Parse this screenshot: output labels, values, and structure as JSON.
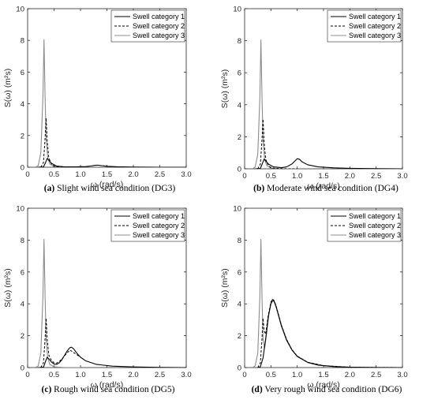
{
  "chart_data": [
    {
      "type": "line",
      "caption_letter": "(a)",
      "caption_text": "Slight wind sea condition (DG3)",
      "xlabel": "ω (rad/s)",
      "ylabel": "S(ω) (m²s)",
      "xlim": [
        0,
        3
      ],
      "ylim": [
        0,
        10
      ],
      "xticks": [
        "0",
        "0.5",
        "1.0",
        "1.5",
        "2.0",
        "2.5",
        "3.0"
      ],
      "yticks": [
        "0",
        "2",
        "4",
        "6",
        "8",
        "10"
      ],
      "legend_position": "top-right",
      "series": [
        {
          "name": "Swell category 1",
          "style": "solid-black",
          "x": [
            0.2,
            0.3,
            0.34,
            0.37,
            0.4,
            0.45,
            0.55,
            0.7,
            0.9,
            1.1,
            1.2,
            1.28,
            1.33,
            1.4,
            1.5,
            1.7,
            2.0,
            2.5,
            3.0
          ],
          "y": [
            0,
            0.02,
            0.3,
            0.55,
            0.45,
            0.25,
            0.07,
            0.02,
            0.02,
            0.04,
            0.08,
            0.12,
            0.13,
            0.1,
            0.06,
            0.03,
            0.01,
            0.0,
            0.0
          ]
        },
        {
          "name": "Swell category 2",
          "style": "dashed-black",
          "x": [
            0.25,
            0.3,
            0.33,
            0.35,
            0.37,
            0.4,
            0.45,
            0.5,
            0.6,
            0.8,
            1.0
          ],
          "y": [
            0,
            0.3,
            1.8,
            3.1,
            1.7,
            0.6,
            0.2,
            0.06,
            0.02,
            0.0,
            0.0
          ]
        },
        {
          "name": "Swell category 3",
          "style": "solid-gray",
          "x": [
            0.15,
            0.2,
            0.25,
            0.29,
            0.31,
            0.33,
            0.35,
            0.38,
            0.42,
            0.5,
            0.7,
            1.0
          ],
          "y": [
            0,
            0.1,
            0.9,
            4.5,
            8.05,
            4.5,
            1.8,
            0.6,
            0.2,
            0.05,
            0.0,
            0.0
          ]
        }
      ]
    },
    {
      "type": "line",
      "caption_letter": "(b)",
      "caption_text": "Moderate wind sea condition (DG4)",
      "xlabel": "ω (rad/s)",
      "ylabel": "S(ω) (m²s)",
      "xlim": [
        0,
        3
      ],
      "ylim": [
        0,
        10
      ],
      "xticks": [
        "0",
        "0.5",
        "1.0",
        "1.5",
        "2.0",
        "2.5",
        "3.0"
      ],
      "yticks": [
        "0",
        "2",
        "4",
        "6",
        "8",
        "10"
      ],
      "legend_position": "top-right",
      "series": [
        {
          "name": "Swell category 1",
          "style": "solid-black",
          "x": [
            0.2,
            0.3,
            0.34,
            0.37,
            0.4,
            0.45,
            0.55,
            0.7,
            0.8,
            0.9,
            0.96,
            1.0,
            1.04,
            1.1,
            1.2,
            1.4,
            1.7,
            2.0,
            2.5,
            3.0
          ],
          "y": [
            0,
            0.02,
            0.35,
            0.6,
            0.5,
            0.3,
            0.12,
            0.07,
            0.12,
            0.3,
            0.5,
            0.63,
            0.6,
            0.42,
            0.25,
            0.12,
            0.06,
            0.03,
            0.01,
            0.0
          ]
        },
        {
          "name": "Swell category 2",
          "style": "dashed-black",
          "x": [
            0.25,
            0.3,
            0.33,
            0.35,
            0.37,
            0.4,
            0.45,
            0.5,
            0.6,
            0.8,
            1.0
          ],
          "y": [
            0,
            0.3,
            1.8,
            3.1,
            1.7,
            0.6,
            0.2,
            0.06,
            0.02,
            0.0,
            0.0
          ]
        },
        {
          "name": "Swell category 3",
          "style": "solid-gray",
          "x": [
            0.15,
            0.2,
            0.25,
            0.29,
            0.31,
            0.33,
            0.35,
            0.38,
            0.42,
            0.5,
            0.7,
            1.0
          ],
          "y": [
            0,
            0.1,
            0.9,
            4.5,
            8.05,
            4.5,
            1.8,
            0.6,
            0.2,
            0.05,
            0.0,
            0.0
          ]
        }
      ]
    },
    {
      "type": "line",
      "caption_letter": "(c)",
      "caption_text": "Rough wind sea condition (DG5)",
      "xlabel": "ω (rad/s)",
      "ylabel": "S(ω) (m²s)",
      "xlim": [
        0,
        3
      ],
      "ylim": [
        0,
        10
      ],
      "xticks": [
        "0",
        "0.5",
        "1.0",
        "1.5",
        "2.0",
        "2.5",
        "3.0"
      ],
      "yticks": [
        "0",
        "2",
        "4",
        "6",
        "8",
        "10"
      ],
      "legend_position": "top-right",
      "series": [
        {
          "name": "Swell category 1",
          "style": "solid-black",
          "x": [
            0.2,
            0.3,
            0.34,
            0.37,
            0.4,
            0.45,
            0.5,
            0.55,
            0.6,
            0.65,
            0.7,
            0.75,
            0.8,
            0.83,
            0.87,
            0.92,
            1.0,
            1.1,
            1.3,
            1.6,
            2.0,
            2.5,
            3.0
          ],
          "y": [
            0,
            0.02,
            0.4,
            0.65,
            0.55,
            0.35,
            0.22,
            0.2,
            0.3,
            0.5,
            0.78,
            1.05,
            1.25,
            1.28,
            1.18,
            0.95,
            0.65,
            0.42,
            0.2,
            0.09,
            0.04,
            0.01,
            0.0
          ]
        },
        {
          "name": "Swell category 2",
          "style": "dashed-black",
          "x": [
            0.25,
            0.3,
            0.33,
            0.35,
            0.37,
            0.4,
            0.45,
            0.5,
            0.55,
            0.6,
            0.65,
            0.7,
            0.8,
            1.0
          ],
          "y": [
            0,
            0.3,
            1.8,
            3.1,
            1.8,
            0.8,
            0.45,
            0.3,
            0.28,
            0.38,
            0.55,
            0.75,
            1.1,
            0.65
          ]
        },
        {
          "name": "Swell category 3",
          "style": "solid-gray",
          "x": [
            0.15,
            0.2,
            0.25,
            0.29,
            0.31,
            0.33,
            0.35,
            0.38,
            0.42,
            0.5,
            0.7,
            1.0
          ],
          "y": [
            0,
            0.1,
            0.9,
            4.5,
            8.05,
            4.5,
            1.8,
            0.6,
            0.2,
            0.05,
            0.0,
            0.0
          ]
        }
      ]
    },
    {
      "type": "line",
      "caption_letter": "(d)",
      "caption_text": "Very rough wind sea condition (DG6)",
      "xlabel": "ω (rad/s)",
      "ylabel": "S(ω) (m²s)",
      "xlim": [
        0,
        3
      ],
      "ylim": [
        0,
        10
      ],
      "xticks": [
        "0",
        "0.5",
        "1.0",
        "1.5",
        "2.0",
        "2.5",
        "3.0"
      ],
      "yticks": [
        "0",
        "2",
        "4",
        "6",
        "8",
        "10"
      ],
      "legend_position": "top-right",
      "series": [
        {
          "name": "Swell category 1",
          "style": "solid-black",
          "x": [
            0.25,
            0.3,
            0.35,
            0.4,
            0.45,
            0.5,
            0.53,
            0.56,
            0.6,
            0.65,
            0.7,
            0.8,
            0.9,
            1.0,
            1.2,
            1.4,
            1.7,
            2.0,
            2.5,
            3.0
          ],
          "y": [
            0,
            0.05,
            0.6,
            1.8,
            3.2,
            4.0,
            4.2,
            4.15,
            3.8,
            3.2,
            2.6,
            1.7,
            1.1,
            0.7,
            0.32,
            0.15,
            0.06,
            0.02,
            0.0,
            0.0
          ]
        },
        {
          "name": "Swell category 2",
          "style": "dashed-black",
          "x": [
            0.25,
            0.3,
            0.33,
            0.35,
            0.37,
            0.4,
            0.45,
            0.5,
            0.53,
            0.56,
            0.6,
            0.65,
            0.7,
            0.8,
            0.9,
            1.0,
            1.2,
            1.5,
            2.0,
            3.0
          ],
          "y": [
            0,
            0.3,
            1.8,
            3.1,
            2.3,
            2.1,
            3.3,
            4.1,
            4.3,
            4.2,
            3.85,
            3.25,
            2.65,
            1.75,
            1.12,
            0.72,
            0.33,
            0.12,
            0.02,
            0.0
          ]
        },
        {
          "name": "Swell category 3",
          "style": "solid-gray",
          "x": [
            0.15,
            0.2,
            0.25,
            0.29,
            0.31,
            0.33,
            0.35,
            0.38,
            0.42,
            0.46,
            0.5,
            0.53,
            0.56,
            0.6,
            0.65,
            0.7,
            0.8,
            0.9,
            1.0,
            1.2,
            1.5,
            2.0,
            3.0
          ],
          "y": [
            0,
            0.1,
            0.9,
            4.5,
            8.05,
            4.5,
            1.8,
            1.2,
            2.2,
            3.3,
            4.1,
            4.3,
            4.2,
            3.85,
            3.25,
            2.65,
            1.75,
            1.12,
            0.72,
            0.33,
            0.12,
            0.02,
            0.0
          ]
        }
      ]
    }
  ]
}
